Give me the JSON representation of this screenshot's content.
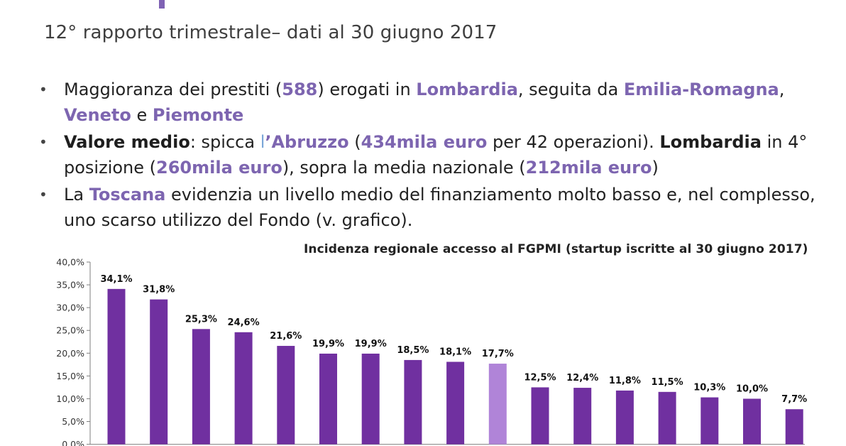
{
  "header": {
    "subtitle": "12° rapporto trimestrale– dati al 30 giugno 2017"
  },
  "bullets": {
    "b1": {
      "t1": "Maggioranza dei prestiti (",
      "h1": "588",
      "t2": ") erogati in ",
      "h2": "Lombardia",
      "t3": ", seguita da ",
      "h3": "Emilia-Romagna",
      "t4": ", ",
      "h4": "Veneto",
      "t5": " e ",
      "h5": "Piemonte"
    },
    "b2": {
      "s1": "Valore medio",
      "t1": ": spicca ",
      "h1a": "l",
      "h1b": "’Abruzzo",
      "t2": " (",
      "h2": "434mila euro",
      "t3": " per 42 operazioni). ",
      "s2": "Lombardia",
      "t4": " in 4° posizione (",
      "h3": "260mila euro",
      "t5": "), sopra la media nazionale (",
      "h4": "212mila euro",
      "t6": ")"
    },
    "b3": {
      "t1": "La ",
      "h1": "Toscana",
      "t2": " evidenzia un livello medio del finanziamento molto basso e, nel complesso, uno scarso utilizzo del Fondo (v. grafico)."
    }
  },
  "chart_data": {
    "type": "bar",
    "title": "Incidenza regionale accesso al FGPMI (startup iscritte al 30 giugno 2017)",
    "values": [
      34.1,
      31.8,
      25.3,
      24.6,
      21.6,
      19.9,
      19.9,
      18.5,
      18.1,
      17.7,
      12.5,
      12.4,
      11.8,
      11.5,
      10.3,
      10.0,
      7.7
    ],
    "data_labels": [
      "34,1%",
      "31,8%",
      "25,3%",
      "24,6%",
      "21,6%",
      "19,9%",
      "19,9%",
      "18,5%",
      "18,1%",
      "17,7%",
      "12,5%",
      "12,4%",
      "11,8%",
      "11,5%",
      "10,3%",
      "10,0%",
      "7,7%"
    ],
    "highlight_index": 9,
    "ylim": [
      0,
      40
    ],
    "y_ticks": [
      0,
      5,
      10,
      15,
      20,
      25,
      30,
      35,
      40
    ],
    "y_tick_labels": [
      "0,0%",
      "5,0%",
      "10,0%",
      "15,0%",
      "20,0%",
      "25,0%",
      "30,0%",
      "35,0%",
      "40,0%"
    ],
    "grid": false,
    "colors": {
      "bar": "#7030a0",
      "highlight": "#b084d8"
    }
  }
}
